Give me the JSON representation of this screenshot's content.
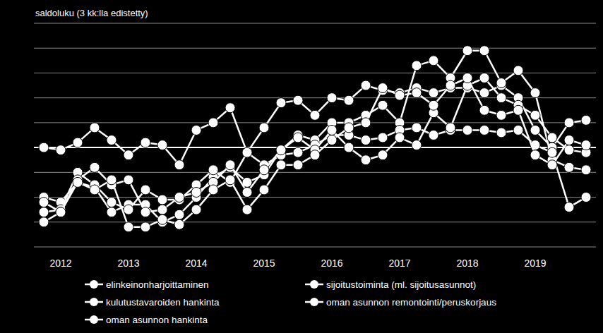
{
  "chart_data": {
    "type": "line",
    "title": "saldoluku (3 kk:lla edistetty)",
    "categories": [
      null,
      "2012",
      null,
      null,
      null,
      "2013",
      null,
      null,
      null,
      "2014",
      null,
      null,
      null,
      "2015",
      null,
      null,
      null,
      "2016",
      null,
      null,
      null,
      "2017",
      null,
      null,
      null,
      "2018",
      null,
      null,
      null,
      "2019",
      null,
      null,
      null
    ],
    "series": [
      {
        "name": "elinkeinonharjoittaminen",
        "color": "#ffffff",
        "values": [
          0,
          -1,
          2,
          8,
          3,
          -3,
          2,
          1,
          -7,
          7,
          10,
          16,
          -2,
          8,
          18,
          19,
          13,
          20,
          19,
          25,
          23,
          22,
          24,
          22,
          24,
          24,
          22,
          25,
          20,
          7,
          0,
          10,
          11
        ]
      },
      {
        "name": "sijoitustoiminta (ml. sijoitusasunnot)",
        "color": "#ffffff",
        "values": [
          -20,
          -22,
          -14,
          -16,
          -26,
          -23,
          -23,
          -30,
          -27,
          -20,
          -12,
          -8,
          -14,
          -11,
          -1,
          5,
          3,
          10,
          10,
          13,
          17,
          10,
          33,
          35,
          28,
          39,
          39,
          26,
          31,
          22,
          -5,
          -8,
          -9
        ]
      },
      {
        "name": "kulutustavaroiden hankinta",
        "color": "#ffffff",
        "values": [
          -26,
          -25,
          -10,
          -15,
          -22,
          -25,
          -17,
          -21,
          -21,
          -15,
          -9,
          -14,
          -2,
          -7,
          -3,
          -2,
          1,
          5,
          5,
          3,
          4,
          7,
          8,
          5,
          7,
          7,
          7,
          6,
          7,
          1,
          -2,
          -24,
          -20
        ]
      },
      {
        "name": "oman asunnon remontointi/peruskorjaus",
        "color": "#ffffff",
        "values": [
          -22,
          -26,
          -13,
          -8,
          -15,
          -13,
          -26,
          -25,
          -20,
          -18,
          -14,
          -7,
          -18,
          -9,
          -1,
          4,
          -1,
          7,
          0,
          -5,
          -3,
          4,
          1,
          14,
          8,
          25,
          28,
          20,
          17,
          13,
          4,
          -1,
          -2
        ]
      },
      {
        "name": "oman asunnon hankinta",
        "color": "#ffffff",
        "values": [
          -30,
          -26,
          -14,
          -17,
          -13,
          -32,
          -32,
          -29,
          -31,
          -25,
          -17,
          -13,
          -25,
          -17,
          -7,
          -7,
          -3,
          3,
          8,
          10,
          24,
          21,
          22,
          17,
          25,
          28,
          15,
          13,
          15,
          -3,
          -7,
          3,
          1
        ]
      }
    ],
    "ylim": [
      -40,
      50
    ],
    "yticks": [
      -40,
      -30,
      -20,
      -10,
      0,
      10,
      20,
      30,
      40,
      50
    ],
    "grid": true,
    "tick_labels": "x",
    "legend": "bottom",
    "marker": "circle"
  }
}
